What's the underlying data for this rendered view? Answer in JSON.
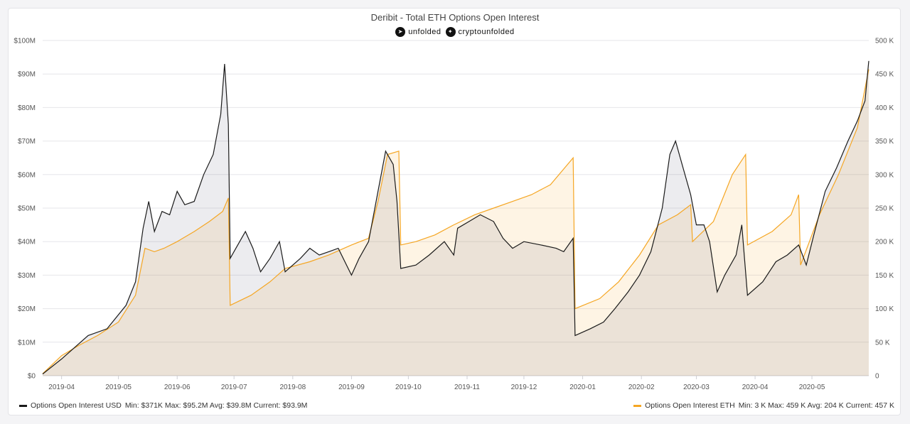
{
  "chart_data": {
    "type": "line",
    "title": "Deribit - Total ETH Options Open Interest",
    "brand": [
      {
        "icon": "telegram-icon",
        "label": "unfolded"
      },
      {
        "icon": "twitter-icon",
        "label": "cryptounfolded"
      }
    ],
    "x_range": [
      "2019-03-22",
      "2020-05-31"
    ],
    "x_ticks": [
      "2019-04",
      "2019-05",
      "2019-06",
      "2019-07",
      "2019-08",
      "2019-09",
      "2019-10",
      "2019-11",
      "2019-12",
      "2020-01",
      "2020-02",
      "2020-03",
      "2020-04",
      "2020-05"
    ],
    "y_left": {
      "ylim": [
        0,
        100
      ],
      "ticks": [
        "$0",
        "$10M",
        "$20M",
        "$30M",
        "$40M",
        "$50M",
        "$60M",
        "$70M",
        "$80M",
        "$90M",
        "$100M"
      ]
    },
    "y_right": {
      "ylim": [
        0,
        500
      ],
      "ticks": [
        "0",
        "50 K",
        "100 K",
        "150 K",
        "200 K",
        "250 K",
        "300 K",
        "350 K",
        "400 K",
        "450 K",
        "500 K"
      ]
    },
    "grid": true,
    "series": [
      {
        "name": "Options Open Interest USD",
        "axis": "left",
        "color": "#1a1a1a",
        "stats": "Min: $371K  Max: $95.2M  Avg: $39.8M  Current: $93.9M",
        "points": [
          [
            "2019-03-22",
            0.5
          ],
          [
            "2019-04-01",
            5
          ],
          [
            "2019-04-15",
            12
          ],
          [
            "2019-04-25",
            14
          ],
          [
            "2019-05-05",
            21
          ],
          [
            "2019-05-10",
            28
          ],
          [
            "2019-05-14",
            44
          ],
          [
            "2019-05-17",
            52
          ],
          [
            "2019-05-20",
            43
          ],
          [
            "2019-05-24",
            49
          ],
          [
            "2019-05-28",
            48
          ],
          [
            "2019-06-01",
            55
          ],
          [
            "2019-06-05",
            51
          ],
          [
            "2019-06-10",
            52
          ],
          [
            "2019-06-15",
            60
          ],
          [
            "2019-06-20",
            66
          ],
          [
            "2019-06-24",
            78
          ],
          [
            "2019-06-26",
            93
          ],
          [
            "2019-06-28",
            75
          ],
          [
            "2019-06-29",
            35
          ],
          [
            "2019-07-02",
            38
          ],
          [
            "2019-07-07",
            43
          ],
          [
            "2019-07-11",
            38
          ],
          [
            "2019-07-15",
            31
          ],
          [
            "2019-07-20",
            35
          ],
          [
            "2019-07-25",
            40
          ],
          [
            "2019-07-28",
            31
          ],
          [
            "2019-08-05",
            35
          ],
          [
            "2019-08-10",
            38
          ],
          [
            "2019-08-15",
            36
          ],
          [
            "2019-08-20",
            37
          ],
          [
            "2019-08-25",
            38
          ],
          [
            "2019-09-01",
            30
          ],
          [
            "2019-09-05",
            35
          ],
          [
            "2019-09-10",
            40
          ],
          [
            "2019-09-15",
            55
          ],
          [
            "2019-09-19",
            67
          ],
          [
            "2019-09-23",
            63
          ],
          [
            "2019-09-25",
            52
          ],
          [
            "2019-09-27",
            32
          ],
          [
            "2019-10-05",
            33
          ],
          [
            "2019-10-12",
            36
          ],
          [
            "2019-10-20",
            40
          ],
          [
            "2019-10-25",
            36
          ],
          [
            "2019-10-27",
            44
          ],
          [
            "2019-11-02",
            46
          ],
          [
            "2019-11-08",
            48
          ],
          [
            "2019-11-15",
            46
          ],
          [
            "2019-11-20",
            41
          ],
          [
            "2019-11-25",
            38
          ],
          [
            "2019-12-01",
            40
          ],
          [
            "2019-12-10",
            39
          ],
          [
            "2019-12-18",
            38
          ],
          [
            "2019-12-22",
            37
          ],
          [
            "2019-12-27",
            41
          ],
          [
            "2019-12-28",
            12
          ],
          [
            "2020-01-05",
            14
          ],
          [
            "2020-01-12",
            16
          ],
          [
            "2020-01-18",
            20
          ],
          [
            "2020-01-25",
            25
          ],
          [
            "2020-01-31",
            30
          ],
          [
            "2020-02-06",
            37
          ],
          [
            "2020-02-12",
            50
          ],
          [
            "2020-02-16",
            66
          ],
          [
            "2020-02-19",
            70
          ],
          [
            "2020-02-23",
            62
          ],
          [
            "2020-02-27",
            54
          ],
          [
            "2020-03-01",
            45
          ],
          [
            "2020-03-05",
            45
          ],
          [
            "2020-03-08",
            40
          ],
          [
            "2020-03-12",
            25
          ],
          [
            "2020-03-16",
            30
          ],
          [
            "2020-03-22",
            36
          ],
          [
            "2020-03-25",
            45
          ],
          [
            "2020-03-28",
            24
          ],
          [
            "2020-04-05",
            28
          ],
          [
            "2020-04-12",
            34
          ],
          [
            "2020-04-18",
            36
          ],
          [
            "2020-04-24",
            39
          ],
          [
            "2020-04-28",
            33
          ],
          [
            "2020-05-02",
            42
          ],
          [
            "2020-05-08",
            55
          ],
          [
            "2020-05-14",
            62
          ],
          [
            "2020-05-20",
            70
          ],
          [
            "2020-05-25",
            76
          ],
          [
            "2020-05-29",
            82
          ],
          [
            "2020-05-31",
            93.9
          ]
        ]
      },
      {
        "name": "Options Open Interest ETH",
        "axis": "right",
        "color": "#f5a623",
        "stats": "Min: 3 K  Max: 459 K  Avg: 204 K  Current: 457 K",
        "points": [
          [
            "2019-03-22",
            3
          ],
          [
            "2019-04-01",
            30
          ],
          [
            "2019-04-10",
            45
          ],
          [
            "2019-04-20",
            60
          ],
          [
            "2019-05-01",
            80
          ],
          [
            "2019-05-10",
            120
          ],
          [
            "2019-05-15",
            190
          ],
          [
            "2019-05-20",
            185
          ],
          [
            "2019-05-25",
            190
          ],
          [
            "2019-06-01",
            200
          ],
          [
            "2019-06-10",
            215
          ],
          [
            "2019-06-18",
            230
          ],
          [
            "2019-06-25",
            245
          ],
          [
            "2019-06-28",
            265
          ],
          [
            "2019-06-29",
            105
          ],
          [
            "2019-07-10",
            120
          ],
          [
            "2019-07-20",
            140
          ],
          [
            "2019-07-28",
            160
          ],
          [
            "2019-08-10",
            170
          ],
          [
            "2019-08-20",
            180
          ],
          [
            "2019-09-01",
            195
          ],
          [
            "2019-09-10",
            205
          ],
          [
            "2019-09-15",
            260
          ],
          [
            "2019-09-20",
            330
          ],
          [
            "2019-09-26",
            335
          ],
          [
            "2019-09-27",
            195
          ],
          [
            "2019-10-05",
            200
          ],
          [
            "2019-10-15",
            210
          ],
          [
            "2019-10-25",
            225
          ],
          [
            "2019-11-05",
            240
          ],
          [
            "2019-11-15",
            250
          ],
          [
            "2019-11-25",
            260
          ],
          [
            "2019-12-05",
            270
          ],
          [
            "2019-12-15",
            285
          ],
          [
            "2019-12-27",
            325
          ],
          [
            "2019-12-28",
            100
          ],
          [
            "2020-01-10",
            115
          ],
          [
            "2020-01-20",
            140
          ],
          [
            "2020-01-31",
            180
          ],
          [
            "2020-02-10",
            225
          ],
          [
            "2020-02-20",
            240
          ],
          [
            "2020-02-27",
            255
          ],
          [
            "2020-02-28",
            200
          ],
          [
            "2020-03-10",
            230
          ],
          [
            "2020-03-20",
            300
          ],
          [
            "2020-03-27",
            330
          ],
          [
            "2020-03-28",
            195
          ],
          [
            "2020-04-10",
            215
          ],
          [
            "2020-04-20",
            240
          ],
          [
            "2020-04-24",
            270
          ],
          [
            "2020-04-25",
            165
          ],
          [
            "2020-05-05",
            240
          ],
          [
            "2020-05-15",
            300
          ],
          [
            "2020-05-25",
            370
          ],
          [
            "2020-05-31",
            457
          ]
        ]
      }
    ]
  }
}
